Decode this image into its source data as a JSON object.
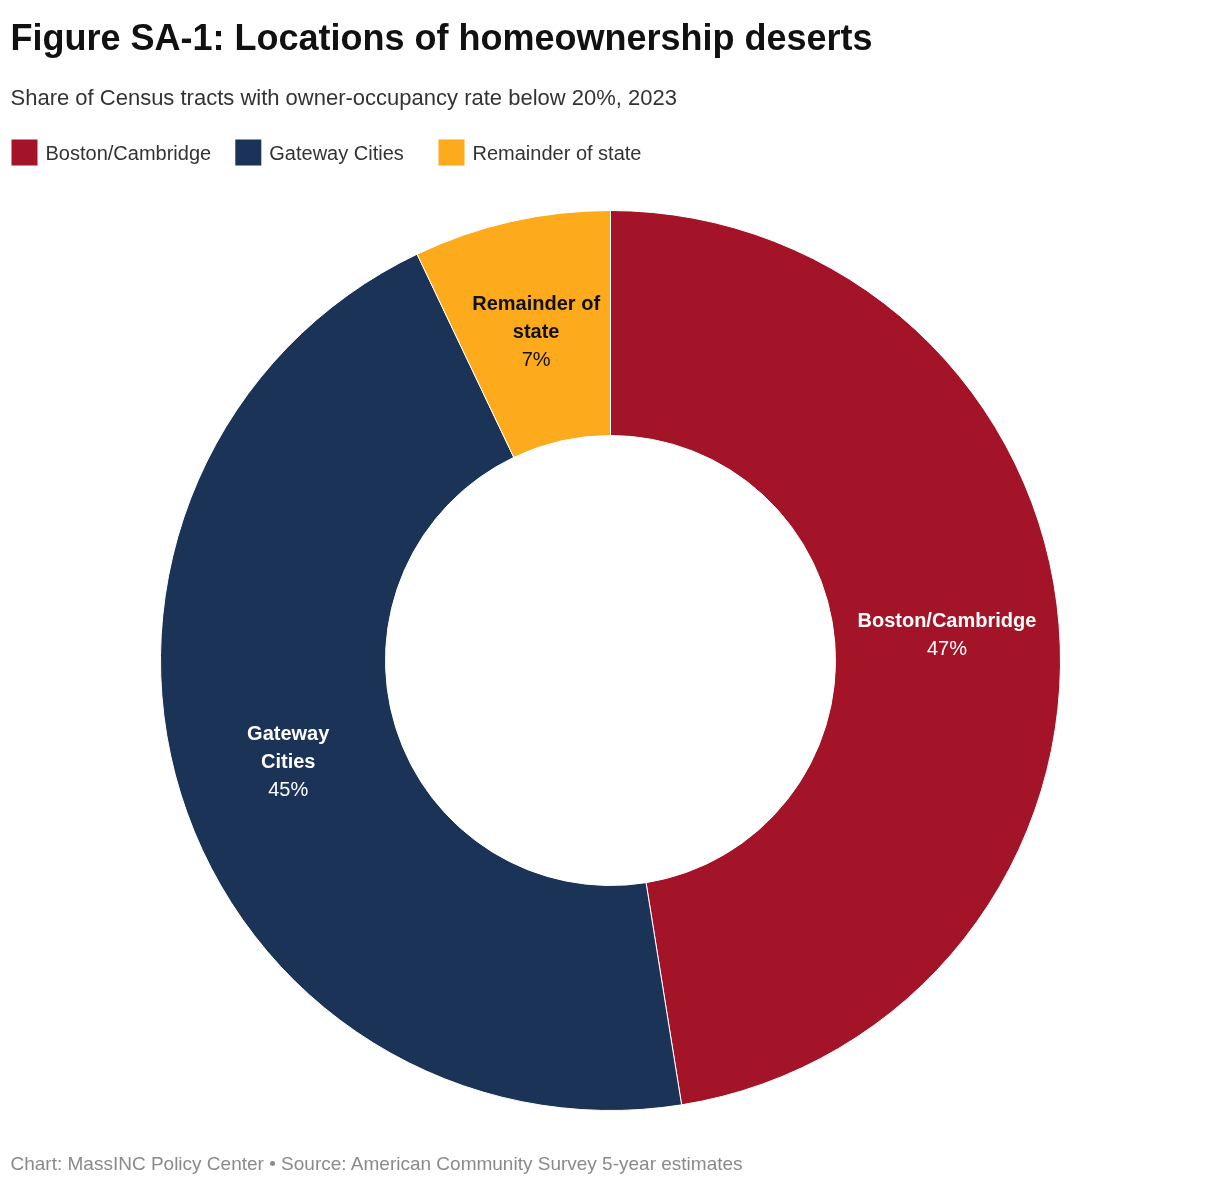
{
  "chart_data": {
    "type": "donut",
    "title": "Figure SA-1: Locations of homeownership deserts",
    "subtitle": "Share of Census tracts with owner-occupancy rate below 20%, 2023",
    "categories": [
      "Boston/Cambridge",
      "Gateway Cities",
      "Remainder of state"
    ],
    "values": [
      47,
      45,
      7
    ],
    "colors": [
      "#a31428",
      "#1b3357",
      "#fdaa1c"
    ],
    "value_labels": [
      "47%",
      "45%",
      "7%"
    ],
    "legend": "top left",
    "annotations": [
      "Chart: MassINC Policy Center • Source: American Community Survey 5-year estimates"
    ]
  }
}
